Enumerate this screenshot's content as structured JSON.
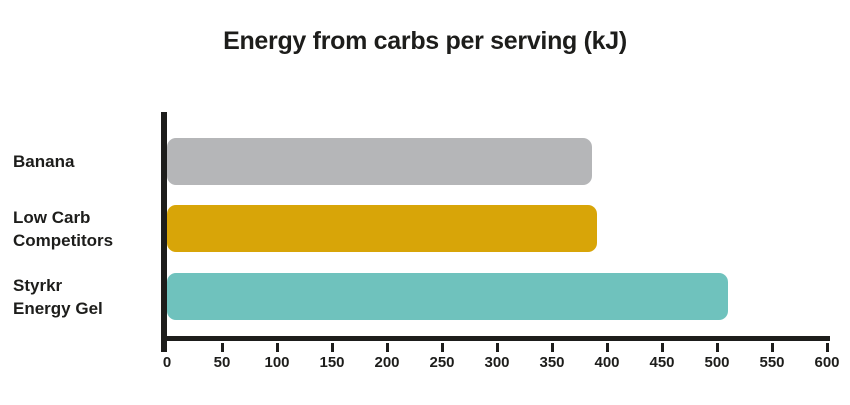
{
  "chart_data": {
    "type": "bar",
    "orientation": "horizontal",
    "title": "Energy from carbs per serving (kJ)",
    "categories": [
      "Banana",
      "Low Carb\nCompetitors",
      "Styrkr\nEnergy Gel"
    ],
    "values": [
      386,
      391,
      510
    ],
    "bar_colors": [
      "#b5b6b8",
      "#d8a508",
      "#6fc2bd"
    ],
    "xlabel": "",
    "ylabel": "",
    "xlim": [
      0,
      600
    ],
    "x_tick_step": 50,
    "x_ticks": [
      0,
      50,
      100,
      150,
      200,
      250,
      300,
      350,
      400,
      450,
      500,
      550,
      600
    ],
    "grid": false,
    "legend": false,
    "axis_color": "#1d1d1b",
    "text_color": "#1d1d1b",
    "background_color": "#ffffff"
  }
}
